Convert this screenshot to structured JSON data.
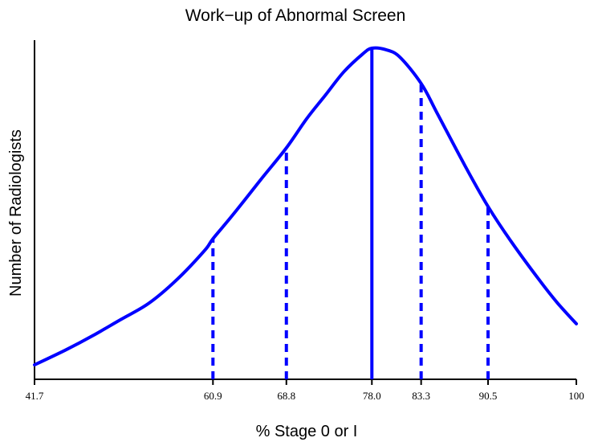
{
  "colors": {
    "curve": "#0000ff",
    "axis": "#000000",
    "background": "#ffffff"
  },
  "chart_data": {
    "type": "line",
    "title": "Work−up of Abnormal Screen",
    "xlabel": "% Stage 0 or I",
    "ylabel": "Number of Radiologists",
    "xlim": [
      41.7,
      100
    ],
    "x_scale": "linear",
    "y_tick_labels": false,
    "grid": false,
    "legend": "none",
    "x_ticks": [
      "41.7",
      "60.9",
      "68.8",
      "78.0",
      "83.3",
      "90.5",
      "100"
    ],
    "curve": {
      "x": [
        41.7,
        45,
        48,
        51,
        54,
        57,
        60,
        60.9,
        63,
        66,
        68.8,
        71,
        73,
        75,
        77,
        78.0,
        79.5,
        81,
        83.3,
        85,
        88,
        90.5,
        93,
        96,
        98,
        100
      ],
      "y": [
        0.0,
        0.05,
        0.1,
        0.155,
        0.21,
        0.29,
        0.39,
        0.43,
        0.51,
        0.63,
        0.74,
        0.84,
        0.92,
        1.0,
        1.06,
        1.08,
        1.075,
        1.05,
        0.96,
        0.86,
        0.68,
        0.54,
        0.42,
        0.29,
        0.21,
        0.14
      ]
    },
    "reference_lines": [
      {
        "x": 60.9,
        "label": "60.9",
        "style": "dashed"
      },
      {
        "x": 68.8,
        "label": "68.8",
        "style": "dashed"
      },
      {
        "x": 78.0,
        "label": "78.0",
        "style": "solid"
      },
      {
        "x": 83.3,
        "label": "83.3",
        "style": "dashed"
      },
      {
        "x": 90.5,
        "label": "90.5",
        "style": "dashed"
      }
    ]
  }
}
